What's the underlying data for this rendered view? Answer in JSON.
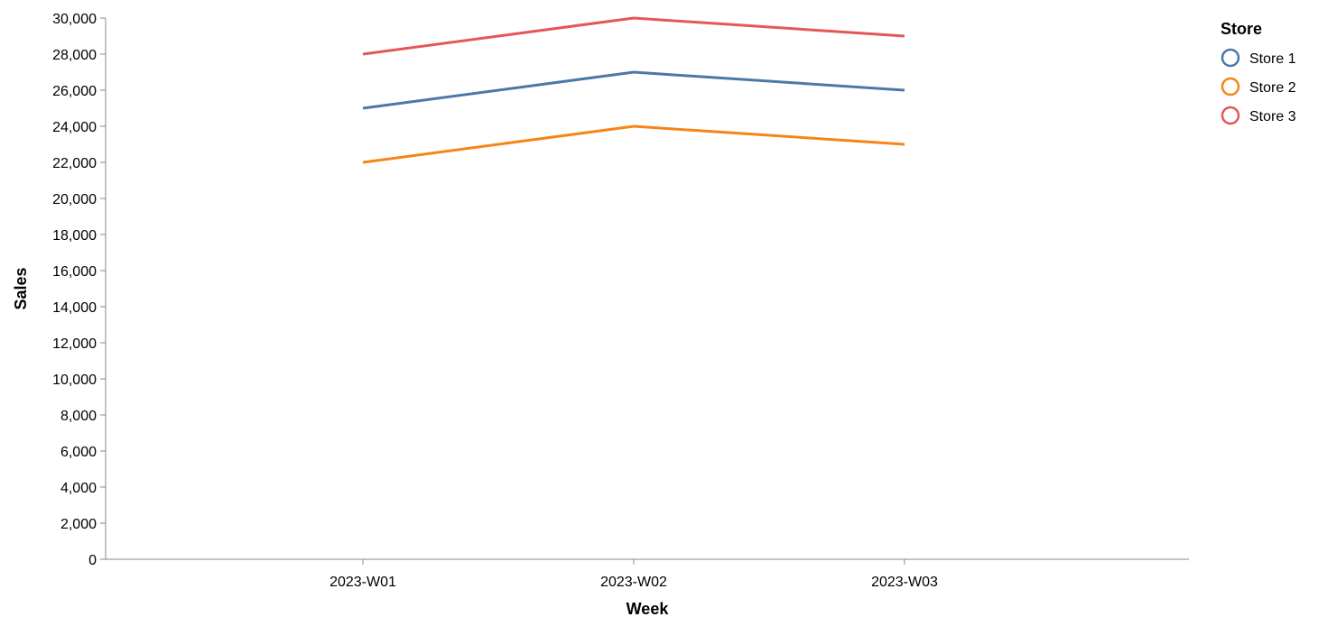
{
  "chart_data": {
    "type": "line",
    "title": "",
    "xlabel": "Week",
    "ylabel": "Sales",
    "categories": [
      "2023-W01",
      "2023-W02",
      "2023-W03"
    ],
    "ylim": [
      0,
      30000
    ],
    "yticks": [
      0,
      2000,
      4000,
      6000,
      8000,
      10000,
      12000,
      14000,
      16000,
      18000,
      20000,
      22000,
      24000,
      26000,
      28000,
      30000
    ],
    "grid": false,
    "legend": {
      "title": "Store",
      "position": "top-right"
    },
    "series": [
      {
        "name": "Store 1",
        "color": "#4c78a8",
        "values": [
          25000,
          27000,
          26000
        ]
      },
      {
        "name": "Store 2",
        "color": "#f58518",
        "values": [
          22000,
          24000,
          23000
        ]
      },
      {
        "name": "Store 3",
        "color": "#e45756",
        "values": [
          28000,
          30000,
          29000
        ]
      }
    ]
  }
}
